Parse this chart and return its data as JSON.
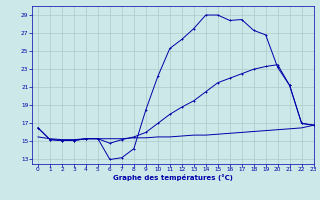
{
  "title": "Graphe des températures (°C)",
  "background_color": "#cce8e8",
  "grid_color": "#aacccc",
  "line_color": "#0000aa",
  "xlim": [
    -0.5,
    23
  ],
  "ylim": [
    12.5,
    30
  ],
  "yticks": [
    13,
    15,
    17,
    19,
    21,
    23,
    25,
    27,
    29
  ],
  "xticks": [
    0,
    1,
    2,
    3,
    4,
    5,
    6,
    7,
    8,
    9,
    10,
    11,
    12,
    13,
    14,
    15,
    16,
    17,
    18,
    19,
    20,
    21,
    22,
    23
  ],
  "line1_x": [
    0,
    1,
    2,
    3,
    4,
    5,
    6,
    7,
    8,
    9,
    10,
    11,
    12,
    13,
    14,
    15,
    16,
    17,
    18,
    19,
    20,
    21,
    22,
    23
  ],
  "line1_y": [
    16.5,
    15.2,
    15.1,
    15.1,
    15.3,
    15.3,
    13.0,
    13.2,
    14.2,
    18.5,
    22.2,
    25.3,
    26.3,
    27.5,
    29.0,
    29.0,
    28.4,
    28.5,
    27.3,
    26.8,
    23.2,
    21.2,
    17.0,
    16.8
  ],
  "line2_x": [
    0,
    1,
    2,
    3,
    4,
    5,
    6,
    7,
    8,
    9,
    10,
    11,
    12,
    13,
    14,
    15,
    16,
    17,
    18,
    19,
    20,
    21,
    22,
    23
  ],
  "line2_y": [
    16.5,
    15.2,
    15.1,
    15.1,
    15.3,
    15.3,
    14.8,
    15.2,
    15.5,
    16.0,
    17.0,
    18.0,
    18.8,
    19.5,
    20.5,
    21.5,
    22.0,
    22.5,
    23.0,
    23.3,
    23.5,
    21.2,
    17.0,
    16.8
  ],
  "line3_x": [
    0,
    1,
    2,
    3,
    4,
    5,
    6,
    7,
    8,
    9,
    10,
    11,
    12,
    13,
    14,
    15,
    16,
    17,
    18,
    19,
    20,
    21,
    22,
    23
  ],
  "line3_y": [
    15.5,
    15.3,
    15.2,
    15.2,
    15.3,
    15.3,
    15.3,
    15.3,
    15.4,
    15.4,
    15.5,
    15.5,
    15.6,
    15.7,
    15.7,
    15.8,
    15.9,
    16.0,
    16.1,
    16.2,
    16.3,
    16.4,
    16.5,
    16.8
  ]
}
